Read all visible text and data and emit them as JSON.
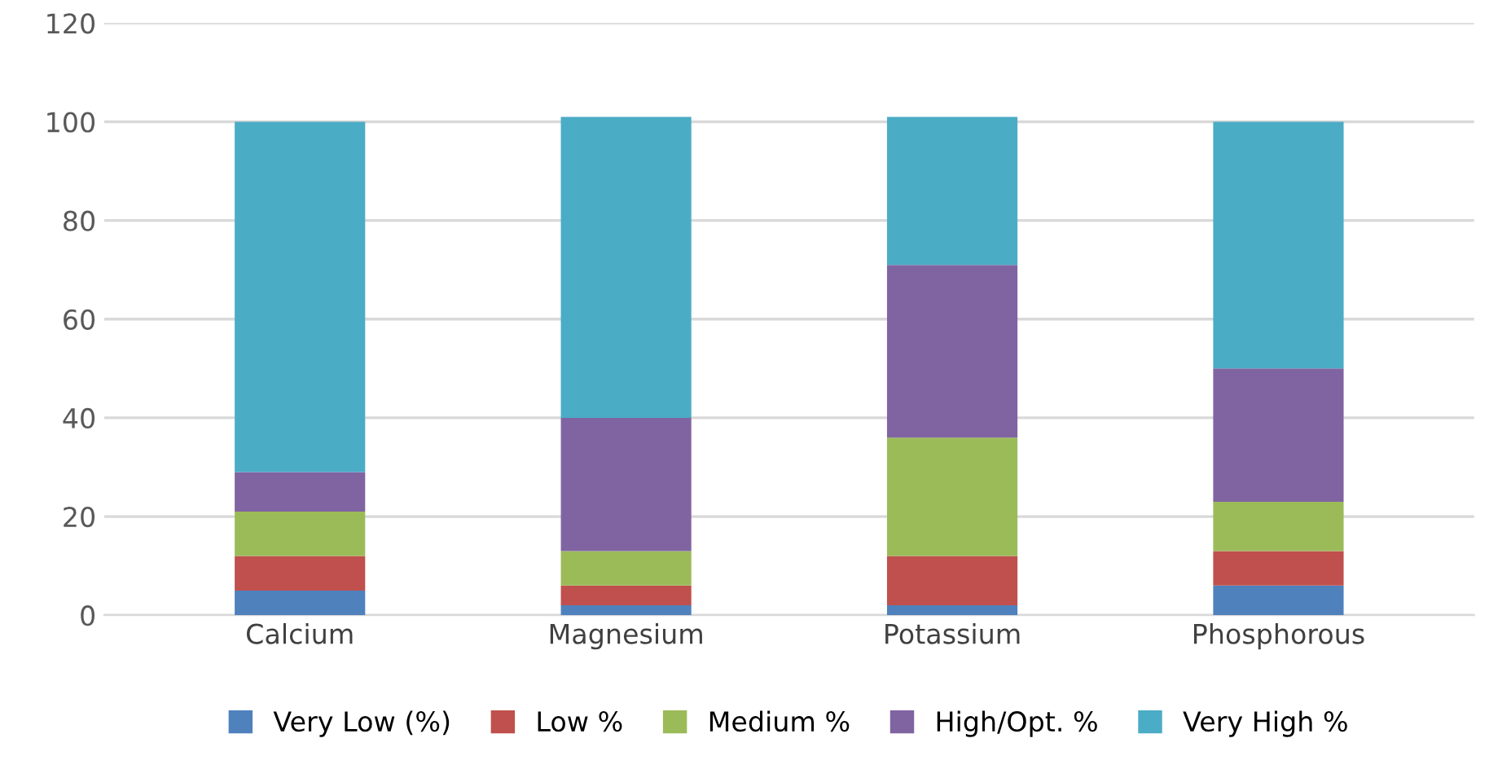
{
  "chart_data": {
    "type": "bar",
    "stacked": true,
    "categories": [
      "Calcium",
      "Magnesium",
      "Potassium",
      "Phosphorous"
    ],
    "series": [
      {
        "name": "Very Low (%)",
        "color": "#4f81bd",
        "values": [
          5,
          2,
          2,
          6
        ]
      },
      {
        "name": "Low %",
        "color": "#c0504d",
        "values": [
          7,
          4,
          10,
          7
        ]
      },
      {
        "name": "Medium %",
        "color": "#9bbb59",
        "values": [
          9,
          7,
          24,
          10
        ]
      },
      {
        "name": "High/Opt. %",
        "color": "#8064a2",
        "values": [
          8,
          27,
          35,
          27
        ]
      },
      {
        "name": "Very High %",
        "color": "#4bacc6",
        "values": [
          71,
          61,
          30,
          50
        ]
      }
    ],
    "ylim": [
      0,
      120
    ],
    "yticks": [
      0,
      20,
      40,
      60,
      80,
      100,
      120
    ],
    "grid": "y",
    "legend": "bottom"
  }
}
